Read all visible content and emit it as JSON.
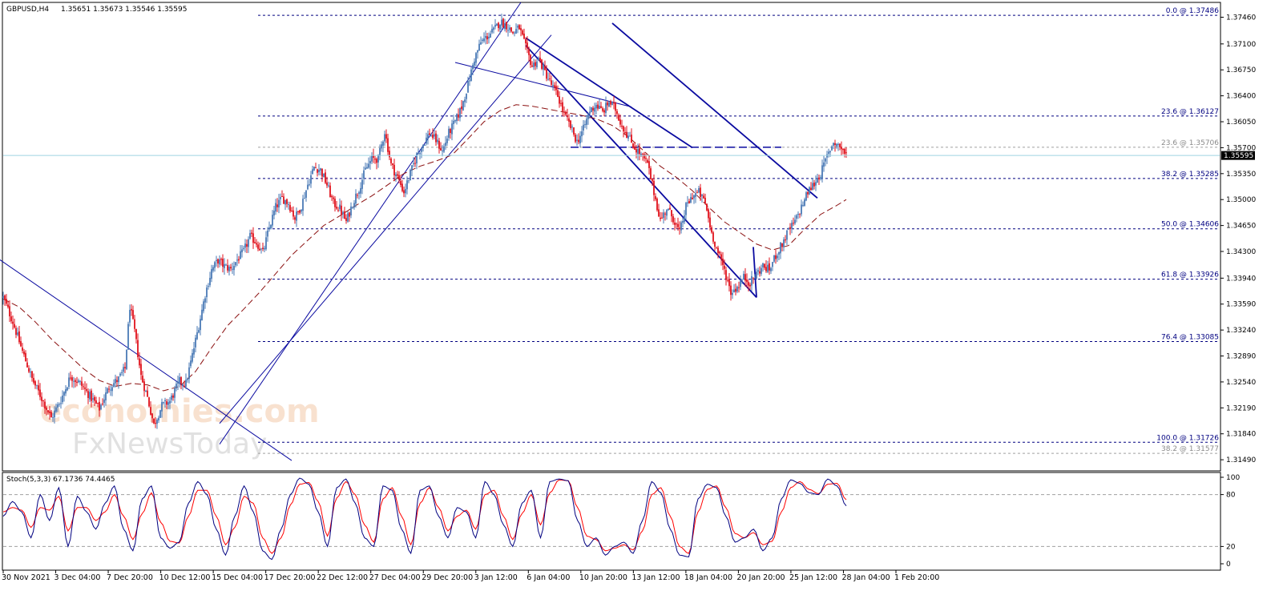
{
  "chart_data": [
    {
      "type": "candlestick",
      "symbol_label": "GBPUSD,H4",
      "ohlc_label": "1.35651 1.35673 1.35546 1.35595",
      "current_price_label": "1.35595",
      "current_price": 1.35595,
      "ylim": [
        1.3134,
        1.3766
      ],
      "y_ticks": [
        "1.37460",
        "1.37100",
        "1.36750",
        "1.36400",
        "1.36050",
        "1.35700",
        "1.35350",
        "1.35000",
        "1.34650",
        "1.34300",
        "1.33940",
        "1.33590",
        "1.33240",
        "1.32890",
        "1.32540",
        "1.32190",
        "1.31840",
        "1.31490"
      ],
      "x_ticks": [
        "30 Nov 2021",
        "3 Dec 04:00",
        "7 Dec 20:00",
        "10 Dec 12:00",
        "15 Dec 04:00",
        "17 Dec 20:00",
        "22 Dec 12:00",
        "27 Dec 04:00",
        "29 Dec 20:00",
        "3 Jan 12:00",
        "6 Jan 04:00",
        "10 Jan 20:00",
        "13 Jan 12:00",
        "18 Jan 04:00",
        "20 Jan 20:00",
        "25 Jan 12:00",
        "28 Jan 04:00",
        "1 Feb 20:00"
      ],
      "fib_levels": [
        {
          "label": "0.0 @ 1.37486",
          "value": 1.37486,
          "muted": false
        },
        {
          "label": "23.6 @ 1.36127",
          "value": 1.36127,
          "muted": false
        },
        {
          "label": "23.6 @ 1.35706",
          "value": 1.35706,
          "muted": true
        },
        {
          "label": "38.2 @ 1.35285",
          "value": 1.35285,
          "muted": false
        },
        {
          "label": "50.0 @ 1.34606",
          "value": 1.34606,
          "muted": false
        },
        {
          "label": "61.8 @ 1.33926",
          "value": 1.33926,
          "muted": false
        },
        {
          "label": "76.4 @ 1.33085",
          "value": 1.33085,
          "muted": false
        },
        {
          "label": "100.0 @ 1.31726",
          "value": 1.31726,
          "muted": false
        },
        {
          "label": "38.2 @ 1.31577",
          "value": 1.31577,
          "muted": true
        }
      ],
      "close_path": [
        [
          0,
          1.3368
        ],
        [
          6,
          1.3335
        ],
        [
          12,
          1.3295
        ],
        [
          18,
          1.3258
        ],
        [
          24,
          1.3232
        ],
        [
          30,
          1.3205
        ],
        [
          36,
          1.323
        ],
        [
          42,
          1.3262
        ],
        [
          48,
          1.3252
        ],
        [
          54,
          1.3235
        ],
        [
          60,
          1.3218
        ],
        [
          66,
          1.3247
        ],
        [
          72,
          1.3258
        ],
        [
          76,
          1.3272
        ],
        [
          79,
          1.3356
        ],
        [
          82,
          1.3322
        ],
        [
          86,
          1.3262
        ],
        [
          90,
          1.3233
        ],
        [
          94,
          1.3196
        ],
        [
          99,
          1.3222
        ],
        [
          104,
          1.3228
        ],
        [
          110,
          1.3255
        ],
        [
          114,
          1.3252
        ],
        [
          118,
          1.329
        ],
        [
          122,
          1.333
        ],
        [
          126,
          1.3372
        ],
        [
          130,
          1.3405
        ],
        [
          134,
          1.3418
        ],
        [
          138,
          1.341
        ],
        [
          142,
          1.3406
        ],
        [
          146,
          1.3419
        ],
        [
          150,
          1.343
        ],
        [
          154,
          1.345
        ],
        [
          158,
          1.3442
        ],
        [
          162,
          1.3428
        ],
        [
          166,
          1.3462
        ],
        [
          170,
          1.349
        ],
        [
          174,
          1.3502
        ],
        [
          178,
          1.3495
        ],
        [
          182,
          1.3475
        ],
        [
          186,
          1.3492
        ],
        [
          190,
          1.352
        ],
        [
          194,
          1.3544
        ],
        [
          198,
          1.354
        ],
        [
          202,
          1.352
        ],
        [
          206,
          1.3495
        ],
        [
          210,
          1.3488
        ],
        [
          214,
          1.347
        ],
        [
          218,
          1.3495
        ],
        [
          222,
          1.3515
        ],
        [
          226,
          1.354
        ],
        [
          230,
          1.3555
        ],
        [
          234,
          1.3555
        ],
        [
          238,
          1.3592
        ],
        [
          242,
          1.3547
        ],
        [
          246,
          1.353
        ],
        [
          250,
          1.351
        ],
        [
          254,
          1.3535
        ],
        [
          258,
          1.356
        ],
        [
          262,
          1.3575
        ],
        [
          266,
          1.359
        ],
        [
          270,
          1.358
        ],
        [
          274,
          1.3565
        ],
        [
          278,
          1.359
        ],
        [
          282,
          1.3605
        ],
        [
          286,
          1.3625
        ],
        [
          290,
          1.3655
        ],
        [
          294,
          1.369
        ],
        [
          298,
          1.3712
        ],
        [
          302,
          1.372
        ],
        [
          306,
          1.3728
        ],
        [
          310,
          1.374
        ],
        [
          314,
          1.3735
        ],
        [
          318,
          1.3725
        ],
        [
          322,
          1.3732
        ],
        [
          326,
          1.3705
        ],
        [
          330,
          1.368
        ],
        [
          334,
          1.369
        ],
        [
          338,
          1.3672
        ],
        [
          342,
          1.3655
        ],
        [
          346,
          1.364
        ],
        [
          350,
          1.3615
        ],
        [
          354,
          1.3598
        ],
        [
          358,
          1.3578
        ],
        [
          362,
          1.3595
        ],
        [
          366,
          1.362
        ],
        [
          370,
          1.3628
        ],
        [
          374,
          1.3618
        ],
        [
          378,
          1.3632
        ],
        [
          382,
          1.3622
        ],
        [
          386,
          1.36
        ],
        [
          390,
          1.3585
        ],
        [
          394,
          1.357
        ],
        [
          398,
          1.356
        ],
        [
          402,
          1.3548
        ],
        [
          406,
          1.351
        ],
        [
          410,
          1.3472
        ],
        [
          414,
          1.3488
        ],
        [
          418,
          1.3475
        ],
        [
          422,
          1.3455
        ],
        [
          426,
          1.349
        ],
        [
          430,
          1.3505
        ],
        [
          434,
          1.351
        ],
        [
          438,
          1.3495
        ],
        [
          442,
          1.3455
        ],
        [
          446,
          1.3428
        ],
        [
          450,
          1.3405
        ],
        [
          454,
          1.3375
        ],
        [
          458,
          1.3382
        ],
        [
          462,
          1.3395
        ],
        [
          466,
          1.3388
        ],
        [
          470,
          1.34
        ],
        [
          474,
          1.341
        ],
        [
          478,
          1.3405
        ],
        [
          482,
          1.3425
        ],
        [
          486,
          1.344
        ],
        [
          490,
          1.3458
        ],
        [
          494,
          1.347
        ],
        [
          498,
          1.349
        ],
        [
          502,
          1.351
        ],
        [
          506,
          1.3522
        ],
        [
          510,
          1.3535
        ],
        [
          514,
          1.3558
        ],
        [
          518,
          1.3578
        ],
        [
          522,
          1.3572
        ],
        [
          526,
          1.356
        ]
      ],
      "ma_path": [
        [
          0,
          1.3366
        ],
        [
          10,
          1.3355
        ],
        [
          20,
          1.3335
        ],
        [
          30,
          1.3312
        ],
        [
          40,
          1.3292
        ],
        [
          50,
          1.3272
        ],
        [
          60,
          1.3256
        ],
        [
          70,
          1.3248
        ],
        [
          80,
          1.3252
        ],
        [
          90,
          1.325
        ],
        [
          100,
          1.3242
        ],
        [
          110,
          1.3248
        ],
        [
          120,
          1.3268
        ],
        [
          130,
          1.33
        ],
        [
          140,
          1.333
        ],
        [
          150,
          1.3352
        ],
        [
          160,
          1.3375
        ],
        [
          170,
          1.34
        ],
        [
          180,
          1.3425
        ],
        [
          190,
          1.3445
        ],
        [
          200,
          1.3465
        ],
        [
          210,
          1.3478
        ],
        [
          220,
          1.3492
        ],
        [
          230,
          1.3505
        ],
        [
          240,
          1.352
        ],
        [
          250,
          1.3535
        ],
        [
          260,
          1.3545
        ],
        [
          270,
          1.3552
        ],
        [
          280,
          1.356
        ],
        [
          290,
          1.3582
        ],
        [
          300,
          1.3605
        ],
        [
          310,
          1.362
        ],
        [
          320,
          1.3628
        ],
        [
          330,
          1.3626
        ],
        [
          340,
          1.3622
        ],
        [
          350,
          1.3618
        ],
        [
          360,
          1.3614
        ],
        [
          370,
          1.3609
        ],
        [
          380,
          1.36
        ],
        [
          390,
          1.3585
        ],
        [
          400,
          1.3565
        ],
        [
          410,
          1.3545
        ],
        [
          420,
          1.353
        ],
        [
          430,
          1.3512
        ],
        [
          440,
          1.349
        ],
        [
          450,
          1.347
        ],
        [
          460,
          1.3455
        ],
        [
          470,
          1.344
        ],
        [
          480,
          1.3432
        ],
        [
          490,
          1.3438
        ],
        [
          500,
          1.346
        ],
        [
          510,
          1.348
        ],
        [
          520,
          1.3492
        ],
        [
          526,
          1.35
        ]
      ],
      "trend_lines": [
        {
          "from": [
            -50,
            1.349
          ],
          "to": [
            180,
            1.3148
          ]
        },
        {
          "from": [
            135,
            1.317
          ],
          "to": [
            323,
            1.3766
          ]
        },
        {
          "from": [
            135,
            1.3198
          ],
          "to": [
            342,
            1.3722
          ]
        },
        {
          "from": [
            282,
            1.3685
          ],
          "to": [
            392,
            1.3625
          ]
        },
        {
          "from": [
            326,
            1.3718
          ],
          "to": [
            430,
            1.357
          ]
        },
        {
          "from": [
            326,
            1.3708
          ],
          "to": [
            470,
            1.3368
          ]
        },
        {
          "from": [
            468,
            1.3436
          ],
          "to": [
            470,
            1.3368
          ]
        },
        {
          "from": [
            380,
            1.3738
          ],
          "to": [
            508,
            1.3502
          ]
        }
      ]
    },
    {
      "type": "line",
      "label": "Stoch(5,3,3) 67.1736 74.4465",
      "ylim": [
        0,
        100
      ],
      "y_ticks": [
        "100",
        "80",
        "20",
        "0"
      ],
      "levels": [
        80,
        20
      ],
      "main_color": "#000080",
      "signal_color": "#ff0000",
      "main": [
        55,
        72,
        60,
        30,
        80,
        50,
        88,
        20,
        78,
        60,
        40,
        70,
        90,
        40,
        15,
        75,
        90,
        30,
        18,
        25,
        70,
        95,
        80,
        40,
        10,
        55,
        90,
        60,
        15,
        5,
        40,
        80,
        99,
        92,
        60,
        20,
        88,
        98,
        70,
        30,
        20,
        90,
        85,
        40,
        12,
        85,
        90,
        55,
        30,
        65,
        60,
        30,
        95,
        80,
        45,
        20,
        70,
        85,
        30,
        95,
        98,
        96,
        50,
        20,
        30,
        10,
        20,
        25,
        12,
        50,
        95,
        82,
        40,
        10,
        8,
        75,
        92,
        88,
        55,
        25,
        30,
        40,
        15,
        30,
        75,
        97,
        93,
        82,
        80,
        98,
        90,
        67
      ],
      "signal": [
        60,
        65,
        62,
        42,
        65,
        62,
        78,
        38,
        65,
        65,
        50,
        60,
        80,
        55,
        28,
        58,
        82,
        48,
        26,
        24,
        55,
        85,
        85,
        55,
        22,
        42,
        78,
        70,
        30,
        12,
        30,
        68,
        92,
        94,
        72,
        32,
        76,
        95,
        80,
        45,
        25,
        75,
        88,
        55,
        22,
        70,
        88,
        65,
        38,
        55,
        62,
        40,
        80,
        85,
        55,
        28,
        58,
        80,
        45,
        82,
        97,
        96,
        65,
        32,
        28,
        15,
        18,
        22,
        16,
        38,
        80,
        88,
        55,
        20,
        12,
        60,
        86,
        90,
        65,
        35,
        30,
        36,
        22,
        26,
        60,
        88,
        95,
        86,
        81,
        92,
        93,
        74
      ],
      "x_last": 526
    }
  ],
  "watermark": {
    "line1": "economies.com",
    "line2": "FxNewsToday"
  },
  "colors": {
    "bull": "#4a7ab6",
    "bear": "#e0121c",
    "fib": "#000080",
    "channel": "#0a0aa0",
    "ma": "#8b1010",
    "grid": "#000000"
  }
}
